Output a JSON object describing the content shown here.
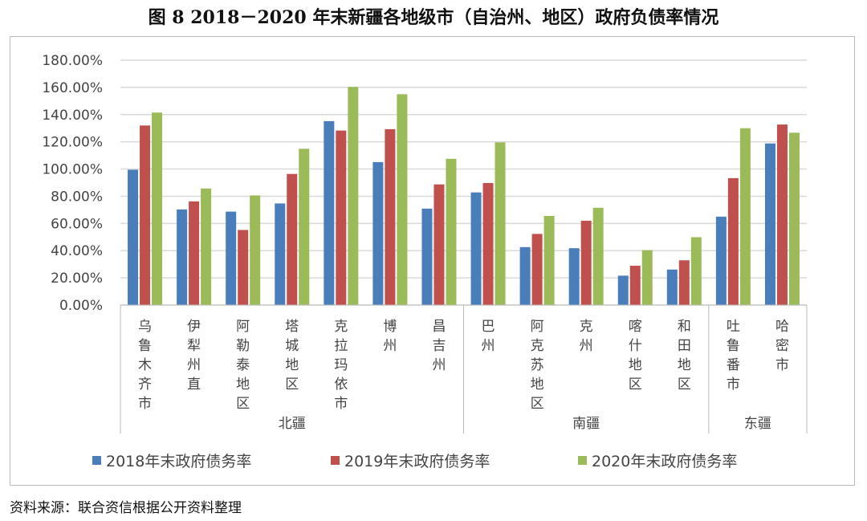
{
  "title": "图 8  2018－2020 年末新疆各地级市（自治州、地区）政府负债率情况",
  "source": "资料来源：联合资信根据公开资料整理",
  "chart_data": {
    "type": "bar",
    "title": "",
    "xlabel": "",
    "ylabel": "",
    "ylim": [
      0,
      180
    ],
    "yticks": [
      "0.00%",
      "20.00%",
      "40.00%",
      "60.00%",
      "80.00%",
      "100.00%",
      "120.00%",
      "140.00%",
      "160.00%",
      "180.00%"
    ],
    "grid": true,
    "legend_position": "bottom",
    "categories": [
      "乌鲁木齐市",
      "伊犁州直",
      "阿勒泰地区",
      "塔城地区",
      "克拉玛依市",
      "博州",
      "昌吉州",
      "巴州",
      "阿克苏地区",
      "克州",
      "喀什地区",
      "和田地区",
      "吐鲁番市",
      "哈密市"
    ],
    "groups": [
      {
        "name": "北疆",
        "count": 7
      },
      {
        "name": "南疆",
        "count": 5
      },
      {
        "name": "东疆",
        "count": 2
      }
    ],
    "series": [
      {
        "name": "2018年末政府债务率",
        "color": "#4a7ebb",
        "values": [
          99.5,
          70.3,
          68.7,
          74.7,
          135.2,
          105.1,
          70.9,
          82.8,
          42.6,
          41.8,
          21.6,
          26.1,
          65.0,
          118.8
        ]
      },
      {
        "name": "2019年末政府债务率",
        "color": "#c0504d",
        "values": [
          132.0,
          76.2,
          55.2,
          96.4,
          128.3,
          129.3,
          88.7,
          89.7,
          52.3,
          62.0,
          28.9,
          32.9,
          93.3,
          132.7
        ]
      },
      {
        "name": "2020年末政府债务率",
        "color": "#9bbb59",
        "values": [
          141.5,
          85.7,
          80.6,
          114.9,
          160.4,
          155.0,
          107.5,
          119.6,
          65.5,
          71.5,
          40.4,
          49.9,
          130.0,
          126.7
        ]
      }
    ]
  }
}
